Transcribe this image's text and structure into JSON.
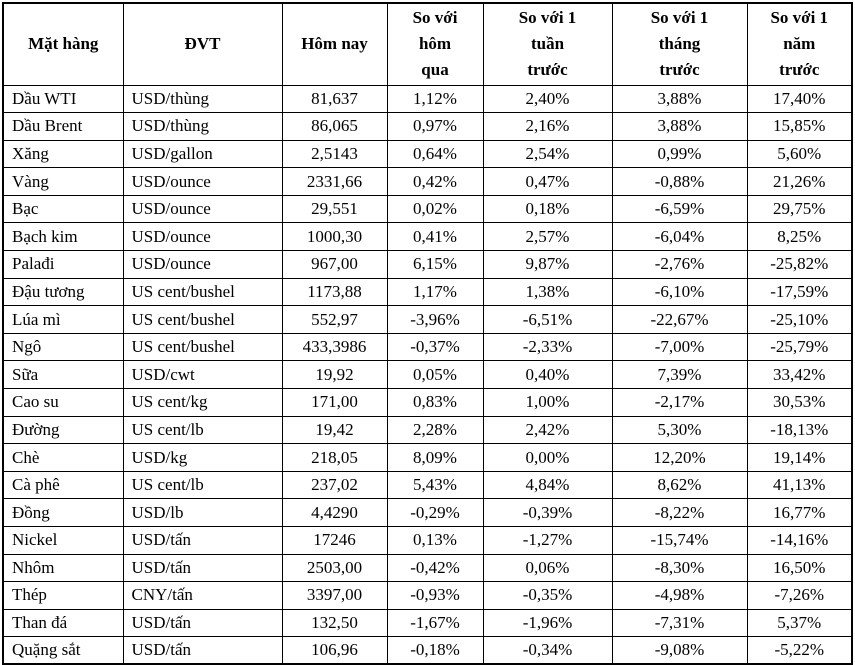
{
  "page": {
    "background_color": "#ffffff",
    "text_color": "#000000",
    "border_color": "#000000"
  },
  "table": {
    "columns": [
      {
        "key": "name",
        "label": "Mặt hàng"
      },
      {
        "key": "unit",
        "label": "ĐVT"
      },
      {
        "key": "today",
        "label": "Hôm nay"
      },
      {
        "key": "vs-yesterday",
        "label": "So với\nhôm\nqua"
      },
      {
        "key": "vs-week",
        "label": "So với 1\ntuần\ntrước"
      },
      {
        "key": "vs-month",
        "label": "So với 1\ntháng\ntrước"
      },
      {
        "key": "vs-year",
        "label": "So với 1\nnăm\ntrước"
      }
    ],
    "rows": [
      [
        "Dầu WTI",
        "USD/thùng",
        "81,637",
        "1,12%",
        "2,40%",
        "3,88%",
        "17,40%"
      ],
      [
        "Dầu Brent",
        "USD/thùng",
        "86,065",
        "0,97%",
        "2,16%",
        "3,88%",
        "15,85%"
      ],
      [
        "Xăng",
        "USD/gallon",
        "2,5143",
        "0,64%",
        "2,54%",
        "0,99%",
        "5,60%"
      ],
      [
        "Vàng",
        "USD/ounce",
        "2331,66",
        "0,42%",
        "0,47%",
        "-0,88%",
        "21,26%"
      ],
      [
        "Bạc",
        "USD/ounce",
        "29,551",
        "0,02%",
        "0,18%",
        "-6,59%",
        "29,75%"
      ],
      [
        "Bạch kim",
        "USD/ounce",
        "1000,30",
        "0,41%",
        "2,57%",
        "-6,04%",
        "8,25%"
      ],
      [
        "Palađi",
        "USD/ounce",
        "967,00",
        "6,15%",
        "9,87%",
        "-2,76%",
        "-25,82%"
      ],
      [
        "Đậu tương",
        "US cent/bushel",
        "1173,88",
        "1,17%",
        "1,38%",
        "-6,10%",
        "-17,59%"
      ],
      [
        "Lúa mì",
        "US cent/bushel",
        "552,97",
        "-3,96%",
        "-6,51%",
        "-22,67%",
        "-25,10%"
      ],
      [
        "Ngô",
        "US cent/bushel",
        "433,3986",
        "-0,37%",
        "-2,33%",
        "-7,00%",
        "-25,79%"
      ],
      [
        "Sữa",
        "USD/cwt",
        "19,92",
        "0,05%",
        "0,40%",
        "7,39%",
        "33,42%"
      ],
      [
        "Cao su",
        "US cent/kg",
        "171,00",
        "0,83%",
        "1,00%",
        "-2,17%",
        "30,53%"
      ],
      [
        "Đường",
        "US cent/lb",
        "19,42",
        "2,28%",
        "2,42%",
        "5,30%",
        "-18,13%"
      ],
      [
        "Chè",
        "USD/kg",
        "218,05",
        "8,09%",
        "0,00%",
        "12,20%",
        "19,14%"
      ],
      [
        "Cà phê",
        "US cent/lb",
        "237,02",
        "5,43%",
        "4,84%",
        "8,62%",
        "41,13%"
      ],
      [
        "Đồng",
        "USD/lb",
        "4,4290",
        "-0,29%",
        "-0,39%",
        "-8,22%",
        "16,77%"
      ],
      [
        "Nickel",
        "USD/tấn",
        "17246",
        "0,13%",
        "-1,27%",
        "-15,74%",
        "-14,16%"
      ],
      [
        "Nhôm",
        "USD/tấn",
        "2503,00",
        "-0,42%",
        "0,06%",
        "-8,30%",
        "16,50%"
      ],
      [
        "Thép",
        "CNY/tấn",
        "3397,00",
        "-0,93%",
        "-0,35%",
        "-4,98%",
        "-7,26%"
      ],
      [
        "Than đá",
        "USD/tấn",
        "132,50",
        "-1,67%",
        "-1,96%",
        "-7,31%",
        "5,37%"
      ],
      [
        "Quặng sắt",
        "USD/tấn",
        "106,96",
        "-0,18%",
        "-0,34%",
        "-9,08%",
        "-5,22%"
      ]
    ]
  }
}
